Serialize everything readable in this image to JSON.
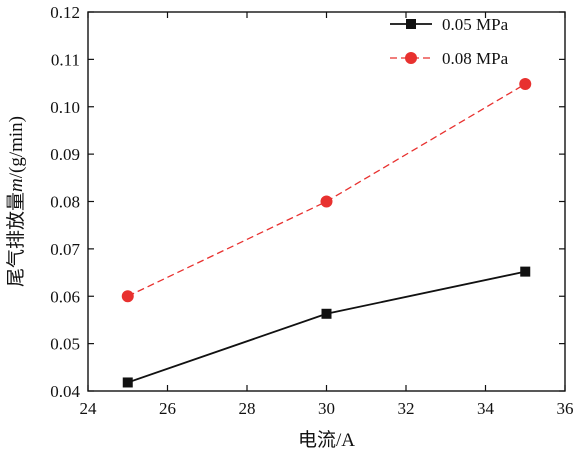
{
  "chart_data": {
    "type": "line",
    "title": "",
    "xlabel": "电流/A",
    "ylabel_prefix": "尾气排放量",
    "ylabel_var": "m",
    "ylabel_suffix": "/(g/min)",
    "xlim": [
      24,
      36
    ],
    "ylim": [
      0.04,
      0.12
    ],
    "xticks": [
      24,
      26,
      28,
      30,
      32,
      34,
      36
    ],
    "yticks": [
      "0.04",
      "0.05",
      "0.06",
      "0.07",
      "0.08",
      "0.09",
      "0.10",
      "0.11",
      "0.12"
    ],
    "grid": false,
    "legend_position": "top-right",
    "series": [
      {
        "name": "0.05 MPa",
        "x": [
          25,
          30,
          35
        ],
        "values": [
          0.0418,
          0.0563,
          0.0652
        ],
        "color": "#111111",
        "line_style": "solid",
        "marker": "square"
      },
      {
        "name": "0.08 MPa",
        "x": [
          25,
          30,
          35
        ],
        "values": [
          0.06,
          0.08,
          0.1048
        ],
        "color": "#e8312f",
        "line_style": "dashed",
        "marker": "circle"
      }
    ]
  }
}
